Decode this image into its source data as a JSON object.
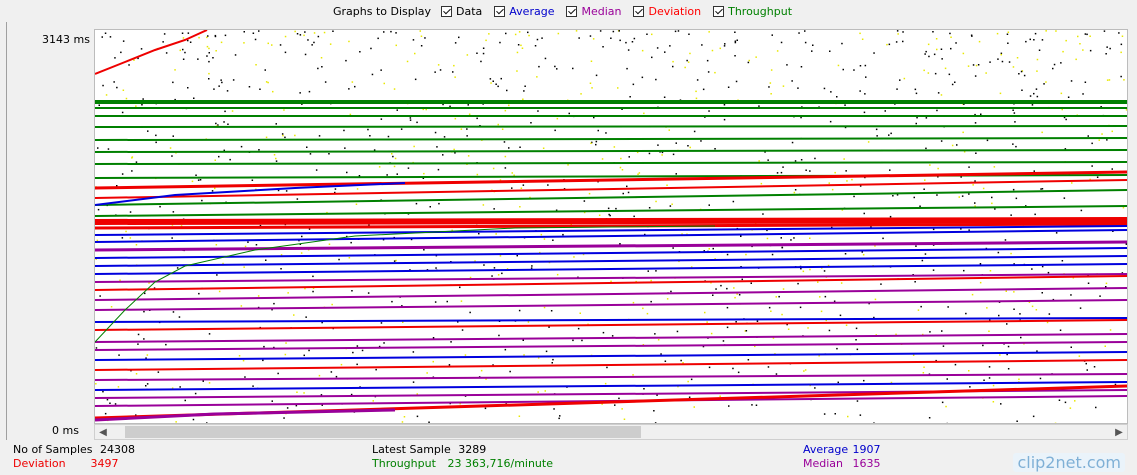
{
  "header": {
    "graphs_label": "Graphs to Display",
    "checkboxes": [
      {
        "label": "Data",
        "color": "#000000",
        "checked": true
      },
      {
        "label": "Average",
        "color": "#0000cc",
        "checked": true
      },
      {
        "label": "Median",
        "color": "#990099",
        "checked": true
      },
      {
        "label": "Deviation",
        "color": "#ff0000",
        "checked": true
      },
      {
        "label": "Throughput",
        "color": "#008000",
        "checked": true
      }
    ]
  },
  "axis": {
    "top_label": "3143  ms",
    "bottom_label": "0  ms",
    "ymax": 3143,
    "ymin": 0
  },
  "stats": {
    "samples_label": "No of Samples",
    "samples_value": "24308",
    "deviation_label": "Deviation",
    "deviation_value": "3497",
    "latest_label": "Latest Sample",
    "latest_value": "3289",
    "throughput_label": "Throughput",
    "throughput_value": "23 363,716/minute",
    "average_label": "Average",
    "average_value": "1907",
    "median_label": "Median",
    "median_value": "1635"
  },
  "colors": {
    "data": "#000000",
    "data_alt": "#e8e800",
    "average": "#0000dd",
    "median": "#990099",
    "deviation": "#ee0000",
    "throughput": "#008000"
  },
  "scrollbar": {
    "left_icon": "arrow-left-icon",
    "right_icon": "arrow-right-icon"
  },
  "watermark": "clip2net.com",
  "chart_data": {
    "type": "scatter",
    "title": "",
    "ylim": [
      0,
      3143
    ],
    "series": [
      {
        "name": "Data",
        "color": "#000000"
      },
      {
        "name": "Average",
        "color": "#0000dd"
      },
      {
        "name": "Median",
        "color": "#990099"
      },
      {
        "name": "Deviation",
        "color": "#ee0000"
      },
      {
        "name": "Throughput",
        "color": "#008000"
      }
    ]
  }
}
